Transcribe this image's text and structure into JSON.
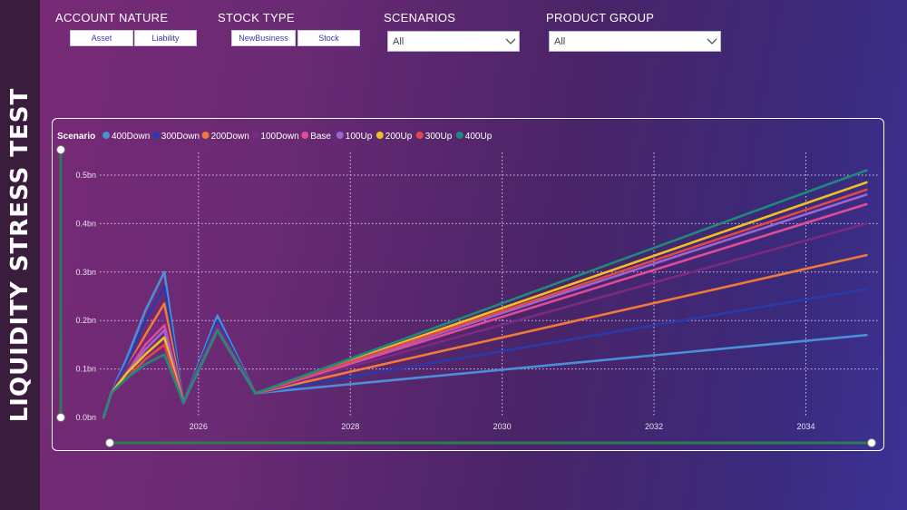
{
  "page_title": "LIQUIDITY STRESS TEST",
  "filters": {
    "account_nature": {
      "label": "ACCOUNT NATURE",
      "options": [
        "Asset",
        "Liability"
      ]
    },
    "stock_type": {
      "label": "STOCK TYPE",
      "options": [
        "NewBusiness",
        "Stock"
      ]
    },
    "scenarios": {
      "label": "SCENARIOS",
      "value": "All"
    },
    "product_group": {
      "label": "PRODUCT GROUP",
      "value": "All"
    }
  },
  "chart_data": {
    "type": "line",
    "legend_title": "Scenario",
    "legend_position": "top-left",
    "grid": true,
    "xlim": [
      2024.7,
      2034.95
    ],
    "ylim": [
      0,
      0.5
    ],
    "x_ticks": [
      2026,
      2028,
      2030,
      2032,
      2034
    ],
    "y_ticks": [
      0,
      0.1,
      0.2,
      0.3,
      0.4,
      0.5
    ],
    "y_tick_labels": [
      "0.0bn",
      "0.1bn",
      "0.2bn",
      "0.3bn",
      "0.4bn",
      "0.5bn"
    ],
    "x": [
      2024.75,
      2024.85,
      2025.05,
      2025.3,
      2025.55,
      2025.8,
      2026.25,
      2026.75,
      2034.8
    ],
    "series": [
      {
        "name": "400Down",
        "color": "#4a8fd8",
        "values": [
          0,
          0.05,
          0.12,
          0.22,
          0.3,
          0.03,
          0.21,
          0.05,
          0.17
        ]
      },
      {
        "name": "300Down",
        "color": "#2a3aa8",
        "values": [
          0,
          0.05,
          0.11,
          0.2,
          0.27,
          0.03,
          0.2,
          0.05,
          0.265
        ]
      },
      {
        "name": "200Down",
        "color": "#f07a3a",
        "values": [
          0,
          0.05,
          0.1,
          0.17,
          0.235,
          0.03,
          0.19,
          0.05,
          0.335
        ]
      },
      {
        "name": "100Down",
        "color": "#7a2a82",
        "values": [
          0,
          0.05,
          0.1,
          0.16,
          0.21,
          0.03,
          0.19,
          0.05,
          0.4
        ]
      },
      {
        "name": "Base",
        "color": "#e24a9a",
        "values": [
          0,
          0.05,
          0.09,
          0.15,
          0.19,
          0.03,
          0.18,
          0.05,
          0.44
        ]
      },
      {
        "name": "100Up",
        "color": "#9a66d2",
        "values": [
          0,
          0.05,
          0.09,
          0.14,
          0.18,
          0.03,
          0.18,
          0.05,
          0.46
        ]
      },
      {
        "name": "200Up",
        "color": "#f0c020",
        "values": [
          0,
          0.05,
          0.09,
          0.13,
          0.165,
          0.03,
          0.18,
          0.05,
          0.485
        ]
      },
      {
        "name": "300Up",
        "color": "#e0484a",
        "values": [
          0,
          0.05,
          0.08,
          0.12,
          0.15,
          0.03,
          0.18,
          0.05,
          0.47
        ]
      },
      {
        "name": "400Up",
        "color": "#1e8a7c",
        "values": [
          0,
          0.05,
          0.08,
          0.11,
          0.13,
          0.03,
          0.18,
          0.05,
          0.51
        ]
      }
    ]
  }
}
